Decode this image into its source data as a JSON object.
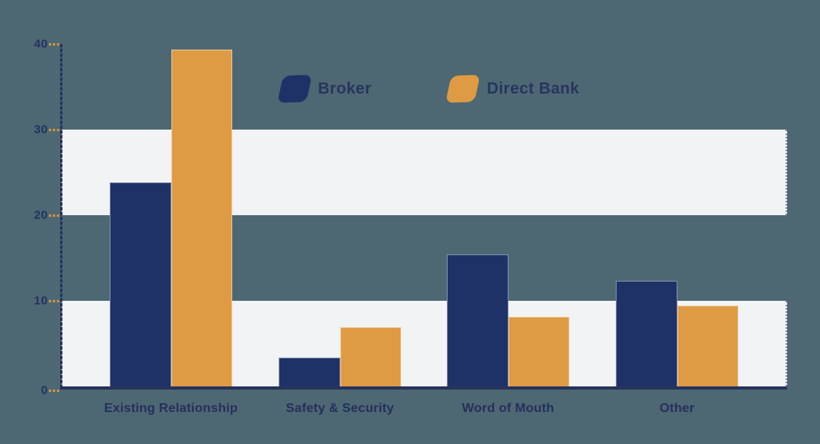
{
  "chart_data": {
    "type": "bar",
    "title": "",
    "categories": [
      "Existing Relationship",
      "Safety & Security",
      "Word of Mouth",
      "Other"
    ],
    "series": [
      {
        "name": "Broker",
        "color": "#1f3268",
        "values": [
          23.8,
          3.4,
          15.4,
          12.3
        ]
      },
      {
        "name": "Direct Bank",
        "color": "#de9b43",
        "values": [
          39.3,
          6.9,
          8.1,
          9.4
        ]
      }
    ],
    "y_ticks": [
      "0",
      "10",
      "20",
      "30",
      "40"
    ],
    "ylim": [
      0,
      40
    ],
    "xlabel": "",
    "ylabel": "",
    "legend_position": "top-center",
    "grid": "alternating horizontal highlight bands at 0-10 and 20-30",
    "highlight_bands": [
      [
        0,
        10
      ],
      [
        20,
        30
      ]
    ],
    "colors": {
      "background": "#4d6872",
      "band": "#f2f3f4",
      "axis": "#28335c",
      "tick_mark": "#cf9045",
      "text": "#252f5e"
    }
  },
  "legend": {
    "items": [
      {
        "label": "Broker",
        "color": "#1f3268"
      },
      {
        "label": "Direct Bank",
        "color": "#de9b43"
      }
    ]
  }
}
